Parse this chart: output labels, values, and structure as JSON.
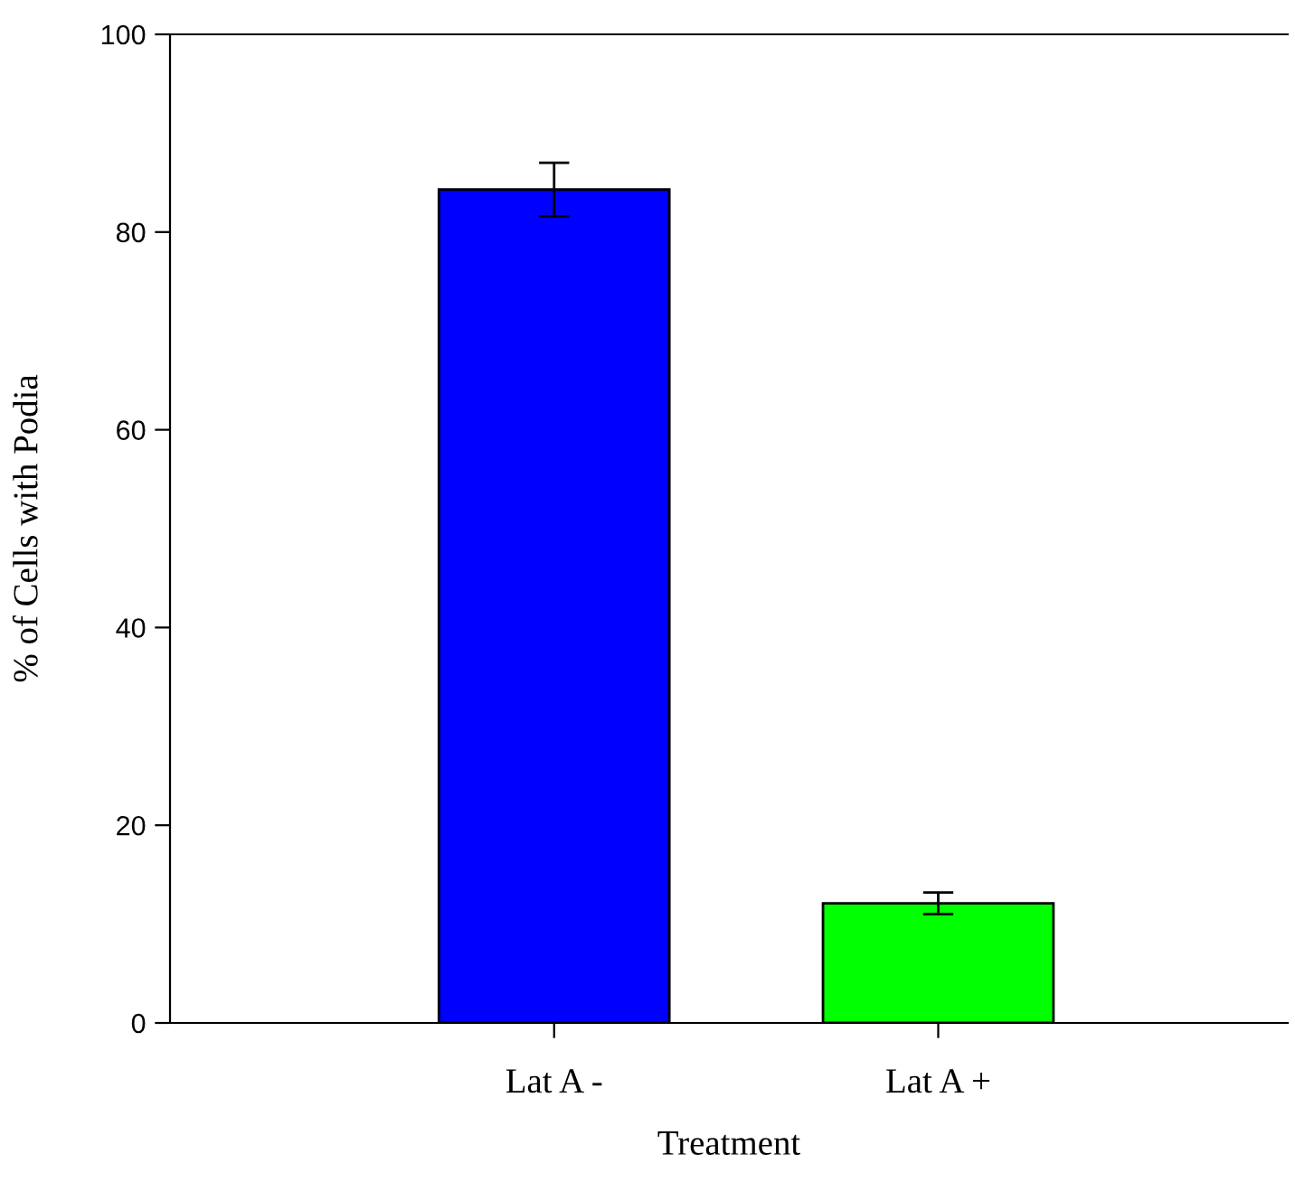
{
  "chart_data": {
    "type": "bar",
    "xlabel": "Treatment",
    "ylabel": "% of Cells with Podia",
    "categories": [
      "Lat A -",
      "Lat A +"
    ],
    "values": [
      84.3,
      12.1
    ],
    "errors": [
      2.7,
      1.1
    ],
    "colors": [
      "#0000ff",
      "#00ff00"
    ],
    "ylim": [
      0,
      100
    ],
    "yticks": [
      0,
      20,
      40,
      60,
      80,
      100
    ],
    "grid": false,
    "legend": false
  }
}
